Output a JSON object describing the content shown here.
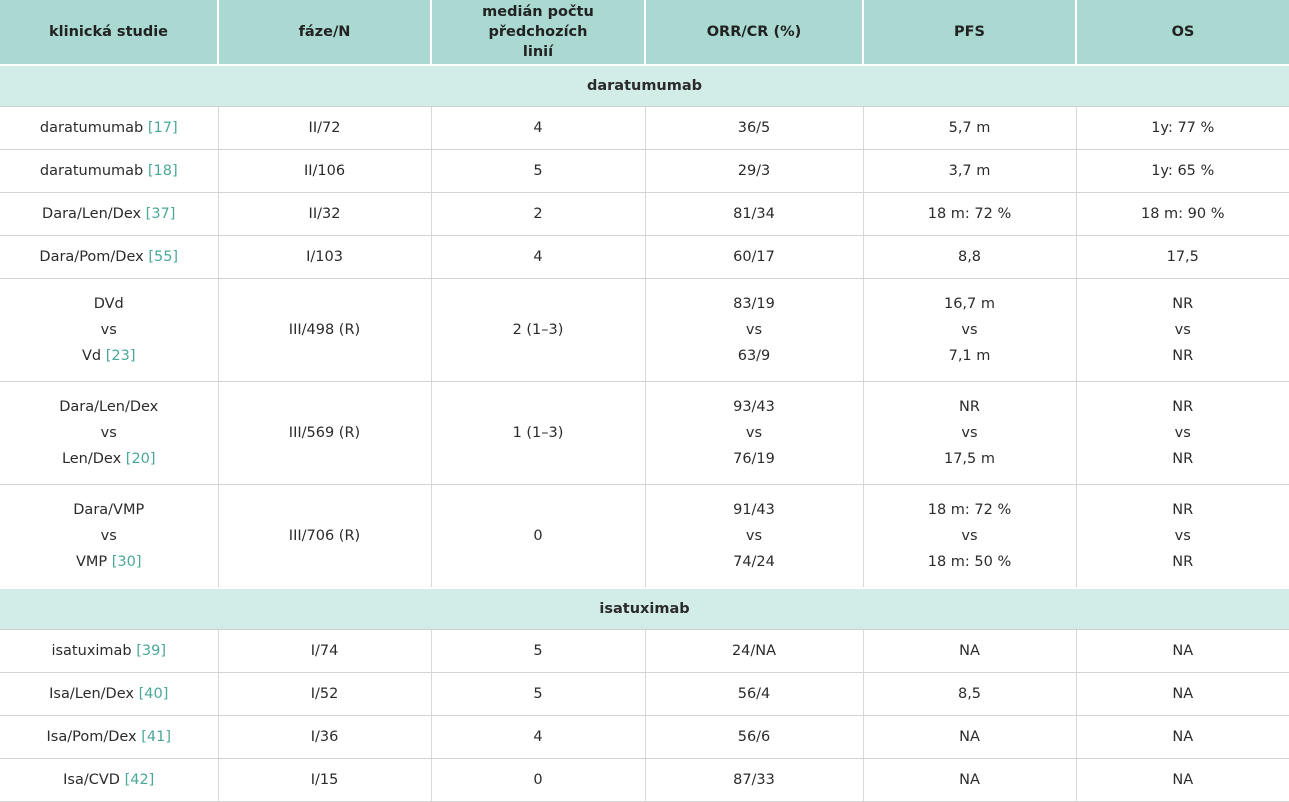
{
  "columns": [
    "klinická studie",
    "fáze/N",
    "medián počtu předchozích linií",
    "ORR/CR (%)",
    "PFS",
    "OS"
  ],
  "groups": [
    {
      "name": "daratumumab",
      "rows": [
        {
          "study": [
            "daratumumab"
          ],
          "ref": "[17]",
          "phase": [
            "II/72"
          ],
          "lines": [
            "4"
          ],
          "orr": [
            "36/5"
          ],
          "pfs": [
            "5,7 m"
          ],
          "os": [
            "1y: 77 %"
          ]
        },
        {
          "study": [
            "daratumumab"
          ],
          "ref": "[18]",
          "phase": [
            "II/106"
          ],
          "lines": [
            "5"
          ],
          "orr": [
            "29/3"
          ],
          "pfs": [
            "3,7 m"
          ],
          "os": [
            "1y: 65 %"
          ]
        },
        {
          "study": [
            "Dara/Len/Dex"
          ],
          "ref": "[37]",
          "phase": [
            "II/32"
          ],
          "lines": [
            "2"
          ],
          "orr": [
            "81/34"
          ],
          "pfs": [
            "18 m: 72 %"
          ],
          "os": [
            "18 m: 90 %"
          ]
        },
        {
          "study": [
            "Dara/Pom/Dex"
          ],
          "ref": "[55]",
          "phase": [
            "I/103"
          ],
          "lines": [
            "4"
          ],
          "orr": [
            "60/17"
          ],
          "pfs": [
            "8,8"
          ],
          "os": [
            "17,5"
          ]
        },
        {
          "study": [
            "DVd",
            "vs",
            "Vd"
          ],
          "ref": "[23]",
          "phase": [
            "III/498 (R)"
          ],
          "lines": [
            "2 (1–3)"
          ],
          "orr": [
            "83/19",
            "vs",
            "63/9"
          ],
          "pfs": [
            "16,7 m",
            "vs",
            "7,1 m"
          ],
          "os": [
            "NR",
            "vs",
            "NR"
          ]
        },
        {
          "study": [
            "Dara/Len/Dex",
            "vs",
            "Len/Dex"
          ],
          "ref": "[20]",
          "phase": [
            "III/569 (R)"
          ],
          "lines": [
            "1 (1–3)"
          ],
          "orr": [
            "93/43",
            "vs",
            "76/19"
          ],
          "pfs": [
            "NR",
            "vs",
            "17,5 m"
          ],
          "os": [
            "NR",
            "vs",
            "NR"
          ]
        },
        {
          "study": [
            "Dara/VMP",
            "vs",
            "VMP"
          ],
          "ref": "[30]",
          "phase": [
            "III/706 (R)"
          ],
          "lines": [
            "0"
          ],
          "orr": [
            "91/43",
            "vs",
            "74/24"
          ],
          "pfs": [
            "18 m: 72 %",
            "vs",
            "18 m: 50 %"
          ],
          "os": [
            "NR",
            "vs",
            "NR"
          ]
        }
      ]
    },
    {
      "name": "isatuximab",
      "rows": [
        {
          "study": [
            "isatuximab"
          ],
          "ref": "[39]",
          "phase": [
            "I/74"
          ],
          "lines": [
            "5"
          ],
          "orr": [
            "24/NA"
          ],
          "pfs": [
            "NA"
          ],
          "os": [
            "NA"
          ]
        },
        {
          "study": [
            "Isa/Len/Dex"
          ],
          "ref": "[40]",
          "phase": [
            "I/52"
          ],
          "lines": [
            "5"
          ],
          "orr": [
            "56/4"
          ],
          "pfs": [
            "8,5"
          ],
          "os": [
            "NA"
          ]
        },
        {
          "study": [
            "Isa/Pom/Dex"
          ],
          "ref": "[41]",
          "phase": [
            "I/36"
          ],
          "lines": [
            "4"
          ],
          "orr": [
            "56/6"
          ],
          "pfs": [
            "NA"
          ],
          "os": [
            "NA"
          ]
        },
        {
          "study": [
            "Isa/CVD"
          ],
          "ref": "[42]",
          "phase": [
            "I/15"
          ],
          "lines": [
            "0"
          ],
          "orr": [
            "87/33"
          ],
          "pfs": [
            "NA"
          ],
          "os": [
            "NA"
          ]
        }
      ]
    }
  ],
  "colors": {
    "header_bg": "#a9d9d1",
    "group_bg": "#d2ece7",
    "ref": "#4aa89a"
  }
}
